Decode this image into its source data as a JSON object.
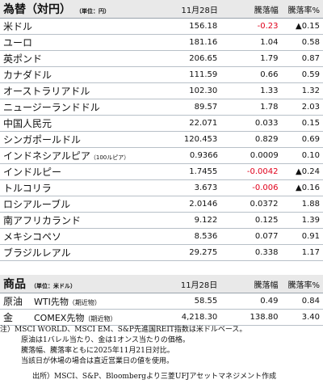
{
  "fx": {
    "title": "為替（対円）",
    "unit": "（単位：円）",
    "columns": [
      "11月28日",
      "騰落幅",
      "騰落率%"
    ],
    "rows": [
      {
        "name": "米ドル",
        "value": "156.18",
        "change": "-0.23",
        "pct": "▲0.15",
        "neg": true
      },
      {
        "name": "ユーロ",
        "value": "181.16",
        "change": "1.04",
        "pct": "0.58"
      },
      {
        "name": "英ポンド",
        "value": "206.65",
        "change": "1.79",
        "pct": "0.87"
      },
      {
        "name": "カナダドル",
        "value": "111.59",
        "change": "0.66",
        "pct": "0.59"
      },
      {
        "name": "オーストラリアドル",
        "value": "102.30",
        "change": "1.33",
        "pct": "1.32"
      },
      {
        "name": "ニュージーランドドル",
        "value": "89.57",
        "change": "1.78",
        "pct": "2.03"
      },
      {
        "name": "中国人民元",
        "value": "22.071",
        "change": "0.033",
        "pct": "0.15"
      },
      {
        "name": "シンガポールドル",
        "value": "120.453",
        "change": "0.829",
        "pct": "0.69"
      },
      {
        "name": "インドネシアルピア",
        "name_note": "（100ルピア）",
        "value": "0.9366",
        "change": "0.0009",
        "pct": "0.10"
      },
      {
        "name": "インドルピー",
        "value": "1.7455",
        "change": "-0.0042",
        "pct": "▲0.24",
        "neg": true
      },
      {
        "name": "トルコリラ",
        "value": "3.673",
        "change": "-0.006",
        "pct": "▲0.16",
        "neg": true
      },
      {
        "name": "ロシアルーブル",
        "value": "2.0146",
        "change": "0.0372",
        "pct": "1.88"
      },
      {
        "name": "南アフリカランド",
        "value": "9.122",
        "change": "0.125",
        "pct": "1.39"
      },
      {
        "name": "メキシコペソ",
        "value": "8.536",
        "change": "0.077",
        "pct": "0.91"
      },
      {
        "name": "ブラジルレアル",
        "value": "29.275",
        "change": "0.338",
        "pct": "1.17"
      }
    ]
  },
  "commodity": {
    "title": "商品",
    "unit": "（単位：米ドル）",
    "columns": [
      "11月28日",
      "騰落幅",
      "騰落率%"
    ],
    "rows": [
      {
        "name": "原油",
        "sub": "WTI先物",
        "sub_note": "（期近物）",
        "value": "58.55",
        "change": "0.49",
        "pct": "0.84"
      },
      {
        "name": "金",
        "sub": "COMEX先物",
        "sub_note": "（期近物）",
        "value": "4,218.30",
        "change": "138.80",
        "pct": "3.40"
      }
    ]
  },
  "notes": {
    "line1": "注）MSCI WORLD、MSCI EM、S&P先進国REIT指数は米ドルベース。",
    "line2": "原油は1バレル当たり、金は1オンス当たりの価格。",
    "line3": "騰落幅、騰落率ともに2025年11月21日対比。",
    "line4": "当該日が休場の場合は直近営業日の値を使用。",
    "source": "出所）MSCI、S&P、Bloombergより三菱UFJアセットマネジメント作成"
  }
}
